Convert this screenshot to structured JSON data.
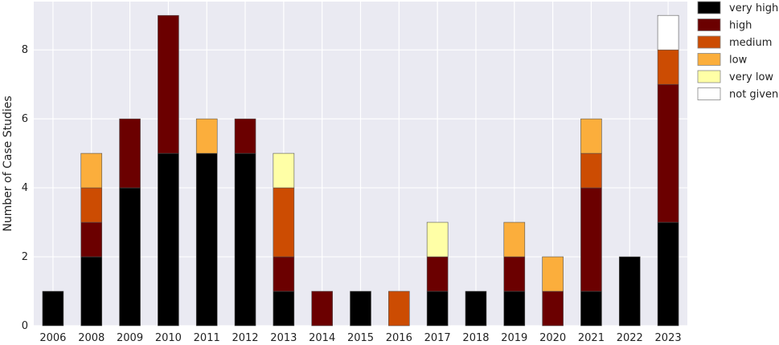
{
  "chart_data": {
    "type": "bar",
    "stacked": true,
    "title": "",
    "xlabel": "",
    "ylabel": "Number of Case Studies",
    "ylim": [
      0,
      9.4
    ],
    "yticks": [
      0,
      2,
      4,
      6,
      8
    ],
    "grid": true,
    "legend_position": "right",
    "categories": [
      "2006",
      "2008",
      "2009",
      "2010",
      "2011",
      "2012",
      "2013",
      "2014",
      "2015",
      "2016",
      "2017",
      "2018",
      "2019",
      "2020",
      "2021",
      "2022",
      "2023"
    ],
    "series": [
      {
        "name": "very high",
        "color": "#000000",
        "values": [
          1,
          2,
          4,
          5,
          5,
          5,
          1,
          0,
          1,
          0,
          1,
          1,
          1,
          0,
          1,
          2,
          3
        ]
      },
      {
        "name": "high",
        "color": "#6b0000",
        "values": [
          0,
          1,
          2,
          4,
          0,
          1,
          1,
          1,
          0,
          0,
          1,
          0,
          1,
          1,
          3,
          0,
          4
        ]
      },
      {
        "name": "medium",
        "color": "#cc4c02",
        "values": [
          0,
          1,
          0,
          0,
          0,
          0,
          2,
          0,
          0,
          1,
          0,
          0,
          0,
          0,
          1,
          0,
          1
        ]
      },
      {
        "name": "low",
        "color": "#fbae3c",
        "values": [
          0,
          1,
          0,
          0,
          1,
          0,
          0,
          0,
          0,
          0,
          0,
          0,
          1,
          1,
          1,
          0,
          0
        ]
      },
      {
        "name": "very low",
        "color": "#ffffa6",
        "values": [
          0,
          0,
          0,
          0,
          0,
          0,
          1,
          0,
          0,
          0,
          1,
          0,
          0,
          0,
          0,
          0,
          0
        ]
      },
      {
        "name": "not given",
        "color": "#ffffff",
        "values": [
          0,
          0,
          0,
          0,
          0,
          0,
          0,
          0,
          0,
          0,
          0,
          0,
          0,
          0,
          0,
          0,
          1
        ]
      }
    ],
    "plot_background": "#eaeaf2",
    "grid_color": "#ffffff"
  }
}
